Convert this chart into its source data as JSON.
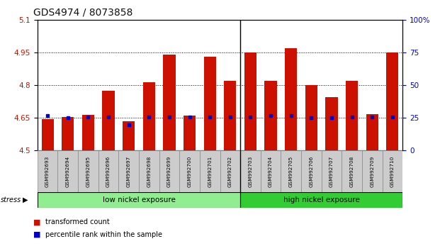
{
  "title": "GDS4974 / 8073858",
  "samples": [
    "GSM992693",
    "GSM992694",
    "GSM992695",
    "GSM992696",
    "GSM992697",
    "GSM992698",
    "GSM992699",
    "GSM992700",
    "GSM992701",
    "GSM992702",
    "GSM992703",
    "GSM992704",
    "GSM992705",
    "GSM992706",
    "GSM992707",
    "GSM992708",
    "GSM992709",
    "GSM992710"
  ],
  "transformed_count": [
    4.645,
    4.655,
    4.665,
    4.775,
    4.635,
    4.815,
    4.94,
    4.66,
    4.93,
    4.82,
    4.95,
    4.82,
    4.97,
    4.8,
    4.745,
    4.82,
    4.668,
    4.95
  ],
  "percentile_rank": [
    27,
    25,
    26,
    26,
    20,
    26,
    26,
    26,
    26,
    26,
    26,
    27,
    27,
    25,
    25,
    26,
    26,
    26
  ],
  "ylim_left": [
    4.5,
    5.1
  ],
  "ylim_right": [
    0,
    100
  ],
  "yticks_left": [
    4.5,
    4.65,
    4.8,
    4.95,
    5.1
  ],
  "yticks_right": [
    0,
    25,
    50,
    75,
    100
  ],
  "bar_color": "#cc1100",
  "dot_color": "#0000cc",
  "low_nickel_count": 10,
  "high_nickel_count": 8,
  "label_low": "low nickel exposure",
  "label_high": "high nickel exposure",
  "stress_label": "stress",
  "legend_bar": "transformed count",
  "legend_dot": "percentile rank within the sample",
  "bg_low": "#90ee90",
  "bg_high": "#32cd32",
  "left_axis_color": "#cc1100",
  "right_axis_color": "#0000cc",
  "bar_width": 0.6,
  "base_value": 4.5,
  "dotted_lines": [
    4.65,
    4.8,
    4.95
  ]
}
